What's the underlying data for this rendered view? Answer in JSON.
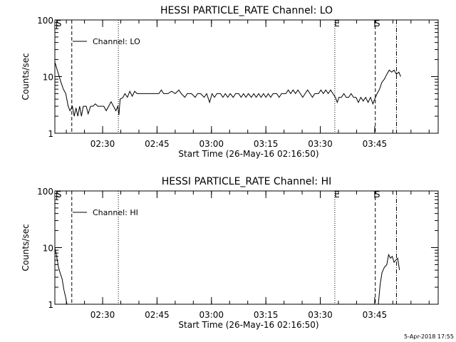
{
  "footer": "5-Apr-2018 17:55",
  "chart_data": [
    {
      "type": "line",
      "title": "HESSI PARTICLE_RATE Channel: LO",
      "xlabel": "Start Time (26-May-16 02:16:50)",
      "ylabel": "Counts/sec",
      "yscale": "log",
      "ylim": [
        1,
        100
      ],
      "yticks": [
        {
          "value": 1,
          "label": "1"
        },
        {
          "value": 10,
          "label": "10"
        },
        {
          "value": 100,
          "label": "100"
        }
      ],
      "xlim": [
        "02:16:50",
        "04:02:30"
      ],
      "xticks": [
        "02:30",
        "02:45",
        "03:00",
        "03:15",
        "03:30",
        "03:45"
      ],
      "grid": false,
      "legend": {
        "position": "top-left",
        "entries": [
          "Channel: LO"
        ]
      },
      "markers": [
        {
          "time": "02:17:20",
          "style": "tick",
          "label": "S"
        },
        {
          "time": "02:21:30",
          "style": "dashed",
          "label": ""
        },
        {
          "time": "02:34:20",
          "style": "dotted",
          "label": ""
        },
        {
          "time": "03:34:00",
          "style": "dotted",
          "label": "E"
        },
        {
          "time": "03:45:10",
          "style": "dashed",
          "label": "S"
        },
        {
          "time": "03:51:00",
          "style": "dashdot",
          "label": ""
        }
      ],
      "series": [
        {
          "points": [
            [
              "02:16:50",
              18
            ],
            [
              "02:17:40",
              12
            ],
            [
              "02:18:30",
              8
            ],
            [
              "02:19:10",
              6
            ],
            [
              "02:19:50",
              5
            ],
            [
              "02:20:30",
              3
            ],
            [
              "02:21:00",
              2.5
            ],
            [
              "02:21:40",
              3
            ],
            [
              "02:22:10",
              2
            ],
            [
              "02:22:40",
              2.8
            ],
            [
              "02:23:10",
              2
            ],
            [
              "02:23:40",
              3
            ],
            [
              "02:24:10",
              2
            ],
            [
              "02:24:40",
              3
            ],
            [
              "02:25:30",
              3
            ],
            [
              "02:26:00",
              2.2
            ],
            [
              "02:26:40",
              3
            ],
            [
              "02:27:20",
              3
            ],
            [
              "02:28:00",
              3.3
            ],
            [
              "02:28:40",
              3
            ],
            [
              "02:29:30",
              3
            ],
            [
              "02:30:20",
              3
            ],
            [
              "02:31:00",
              2.5
            ],
            [
              "02:31:40",
              3
            ],
            [
              "02:32:20",
              3.6
            ],
            [
              "02:33:00",
              3
            ],
            [
              "02:33:40",
              2.5
            ],
            [
              "02:34:10",
              3
            ],
            [
              "02:34:30",
              2.1
            ],
            [
              "02:34:50",
              4
            ],
            [
              "02:35:30",
              4.2
            ],
            [
              "02:36:10",
              5
            ],
            [
              "02:36:50",
              4.3
            ],
            [
              "02:37:30",
              5.5
            ],
            [
              "02:38:10",
              4.5
            ],
            [
              "02:38:50",
              5.5
            ],
            [
              "02:39:30",
              5
            ],
            [
              "02:40:30",
              5
            ],
            [
              "02:41:30",
              5
            ],
            [
              "02:42:30",
              5
            ],
            [
              "02:43:30",
              5
            ],
            [
              "02:44:30",
              5
            ],
            [
              "02:45:30",
              5
            ],
            [
              "02:46:10",
              5.8
            ],
            [
              "02:46:50",
              5
            ],
            [
              "02:48:00",
              5
            ],
            [
              "02:49:00",
              5.5
            ],
            [
              "02:50:00",
              5
            ],
            [
              "02:51:00",
              5.8
            ],
            [
              "02:51:40",
              5
            ],
            [
              "02:52:40",
              4.3
            ],
            [
              "02:53:20",
              5
            ],
            [
              "02:54:30",
              5
            ],
            [
              "02:55:30",
              4.3
            ],
            [
              "02:56:10",
              5
            ],
            [
              "02:57:00",
              5
            ],
            [
              "02:58:00",
              4.3
            ],
            [
              "02:58:40",
              5
            ],
            [
              "02:59:30",
              3.5
            ],
            [
              "03:00:10",
              5
            ],
            [
              "03:00:50",
              4.3
            ],
            [
              "03:01:30",
              5
            ],
            [
              "03:02:30",
              5
            ],
            [
              "03:03:10",
              4.3
            ],
            [
              "03:03:50",
              5
            ],
            [
              "03:04:30",
              4.3
            ],
            [
              "03:05:10",
              5
            ],
            [
              "03:06:00",
              4.3
            ],
            [
              "03:06:40",
              5
            ],
            [
              "03:07:30",
              5
            ],
            [
              "03:08:10",
              4.3
            ],
            [
              "03:08:50",
              5
            ],
            [
              "03:09:30",
              4.3
            ],
            [
              "03:10:10",
              5
            ],
            [
              "03:11:00",
              4.3
            ],
            [
              "03:11:40",
              5
            ],
            [
              "03:12:20",
              4.3
            ],
            [
              "03:13:00",
              5
            ],
            [
              "03:13:40",
              4.3
            ],
            [
              "03:14:20",
              5
            ],
            [
              "03:15:00",
              4.3
            ],
            [
              "03:15:40",
              5
            ],
            [
              "03:16:20",
              4.3
            ],
            [
              "03:17:00",
              5
            ],
            [
              "03:18:00",
              5
            ],
            [
              "03:18:40",
              4.3
            ],
            [
              "03:19:20",
              5
            ],
            [
              "03:20:30",
              5
            ],
            [
              "03:21:10",
              5.8
            ],
            [
              "03:21:50",
              5
            ],
            [
              "03:22:30",
              5.8
            ],
            [
              "03:23:10",
              5
            ],
            [
              "03:23:50",
              5.8
            ],
            [
              "03:24:30",
              5
            ],
            [
              "03:25:10",
              4.3
            ],
            [
              "03:25:50",
              5
            ],
            [
              "03:26:30",
              5.8
            ],
            [
              "03:27:10",
              5
            ],
            [
              "03:27:50",
              4.3
            ],
            [
              "03:28:30",
              5
            ],
            [
              "03:29:30",
              5
            ],
            [
              "03:30:10",
              5.8
            ],
            [
              "03:30:50",
              5
            ],
            [
              "03:31:30",
              5.8
            ],
            [
              "03:32:10",
              5
            ],
            [
              "03:32:50",
              5.8
            ],
            [
              "03:33:30",
              5
            ],
            [
              "03:34:10",
              4.3
            ],
            [
              "03:34:40",
              3.5
            ],
            [
              "03:35:10",
              4.3
            ],
            [
              "03:35:50",
              4.3
            ],
            [
              "03:36:30",
              5
            ],
            [
              "03:37:10",
              4.3
            ],
            [
              "03:37:50",
              4.3
            ],
            [
              "03:38:30",
              5
            ],
            [
              "03:39:10",
              4.3
            ],
            [
              "03:39:50",
              4.3
            ],
            [
              "03:40:30",
              3.5
            ],
            [
              "03:41:10",
              4.3
            ],
            [
              "03:41:50",
              3.7
            ],
            [
              "03:42:30",
              4.3
            ],
            [
              "03:43:10",
              3.5
            ],
            [
              "03:43:50",
              4.3
            ],
            [
              "03:44:30",
              3.3
            ],
            [
              "03:45:00",
              4
            ],
            [
              "03:45:40",
              5
            ],
            [
              "03:46:20",
              6
            ],
            [
              "03:47:00",
              8
            ],
            [
              "03:47:40",
              9
            ],
            [
              "03:48:20",
              11
            ],
            [
              "03:49:00",
              13
            ],
            [
              "03:49:40",
              12
            ],
            [
              "03:50:20",
              13
            ],
            [
              "03:51:00",
              11
            ],
            [
              "03:51:40",
              12
            ],
            [
              "03:52:10",
              10
            ]
          ]
        }
      ]
    },
    {
      "type": "line",
      "title": "HESSI PARTICLE_RATE Channel: HI",
      "xlabel": "Start Time (26-May-16 02:16:50)",
      "ylabel": "Counts/sec",
      "yscale": "log",
      "ylim": [
        1,
        100
      ],
      "yticks": [
        {
          "value": 1,
          "label": "1"
        },
        {
          "value": 10,
          "label": "10"
        },
        {
          "value": 100,
          "label": "100"
        }
      ],
      "xlim": [
        "02:16:50",
        "04:02:30"
      ],
      "xticks": [
        "02:30",
        "02:45",
        "03:00",
        "03:15",
        "03:30",
        "03:45"
      ],
      "grid": false,
      "legend": {
        "position": "top-left",
        "entries": [
          "Channel: HI"
        ]
      },
      "markers": [
        {
          "time": "02:17:20",
          "style": "tick",
          "label": "S"
        },
        {
          "time": "02:21:30",
          "style": "dashed",
          "label": ""
        },
        {
          "time": "02:34:20",
          "style": "dotted",
          "label": ""
        },
        {
          "time": "03:34:00",
          "style": "dotted",
          "label": "E"
        },
        {
          "time": "03:45:10",
          "style": "dashed",
          "label": "S"
        },
        {
          "time": "03:51:00",
          "style": "dashdot",
          "label": ""
        }
      ],
      "series": [
        {
          "points": [
            [
              "02:16:50",
              10
            ],
            [
              "02:17:20",
              7
            ],
            [
              "02:17:50",
              4.5
            ],
            [
              "02:18:20",
              3.5
            ],
            [
              "02:18:50",
              2.8
            ],
            [
              "02:19:20",
              1.8
            ],
            [
              "02:19:50",
              1.3
            ],
            [
              "02:20:10",
              1
            ]
          ]
        },
        {
          "points": [
            [
              "03:46:00",
              1
            ],
            [
              "03:46:30",
              2.2
            ],
            [
              "03:47:00",
              3.6
            ],
            [
              "03:47:40",
              4.5
            ],
            [
              "03:48:20",
              5
            ],
            [
              "03:48:50",
              7.5
            ],
            [
              "03:49:20",
              6.5
            ],
            [
              "03:49:50",
              7
            ],
            [
              "03:50:20",
              5.5
            ],
            [
              "03:50:50",
              6
            ],
            [
              "03:51:20",
              6.5
            ],
            [
              "03:51:50",
              4
            ]
          ]
        }
      ]
    }
  ]
}
